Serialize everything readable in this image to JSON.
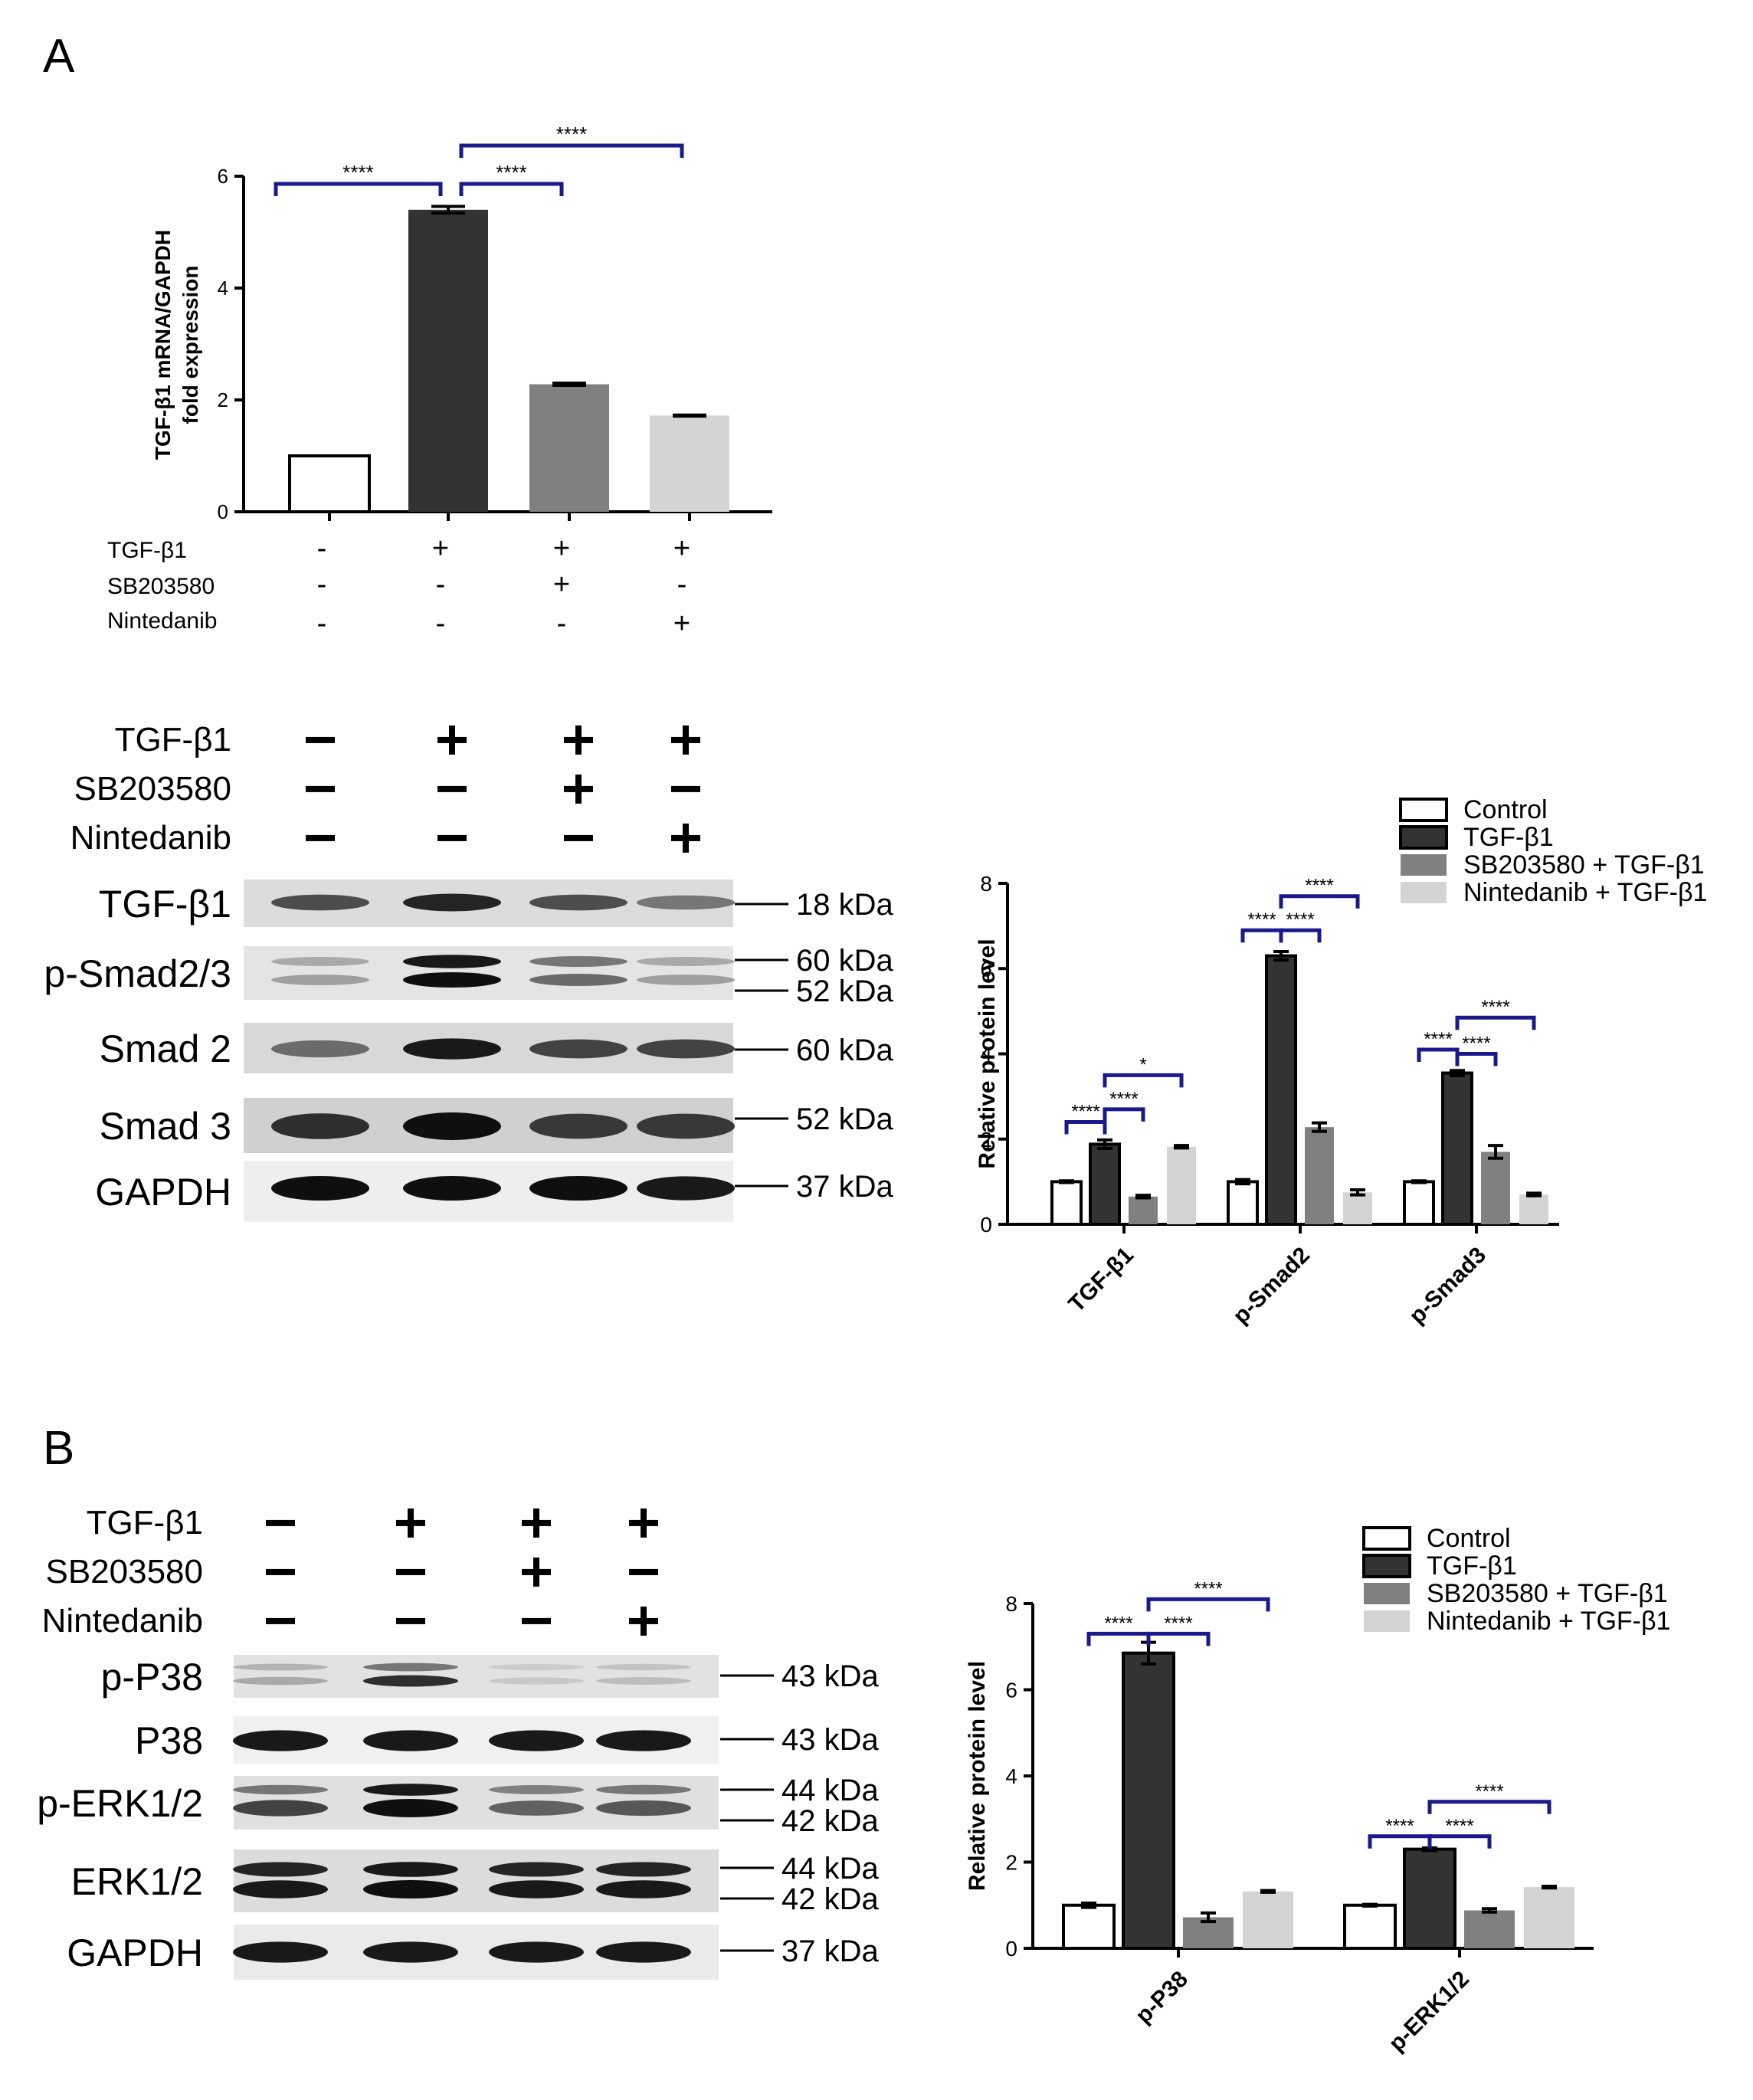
{
  "panels": {
    "a": "A",
    "b": "B"
  },
  "colors": {
    "control": "#ffffff",
    "tgf": "#333333",
    "sb": "#808080",
    "nin": "#d4d4d4",
    "bracket": "#1a1a8c"
  },
  "legend": [
    "Control",
    "TGF-β1",
    "SB203580 + TGF-β1",
    "Nintedanib + TGF-β1"
  ],
  "treatments": {
    "labels": [
      "TGF-β1",
      "SB203580",
      "Nintedanib"
    ],
    "signs": [
      [
        "-",
        "+",
        "+",
        "+"
      ],
      [
        "-",
        "-",
        "+",
        "-"
      ],
      [
        "-",
        "-",
        "-",
        "+"
      ]
    ]
  },
  "blots_a": [
    {
      "label": "TGF-β1",
      "kda": [
        "18 kDa"
      ]
    },
    {
      "label": "p-Smad2/3",
      "kda": [
        "60 kDa",
        "52 kDa"
      ]
    },
    {
      "label": "Smad 2",
      "kda": [
        "60 kDa"
      ]
    },
    {
      "label": "Smad 3",
      "kda": [
        "52 kDa"
      ]
    },
    {
      "label": "GAPDH",
      "kda": [
        "37 kDa"
      ]
    }
  ],
  "blots_b": [
    {
      "label": "p-P38",
      "kda": [
        "43 kDa"
      ]
    },
    {
      "label": "P38",
      "kda": [
        "43 kDa"
      ]
    },
    {
      "label": "p-ERK1/2",
      "kda": [
        "44 kDa",
        "42 kDa"
      ]
    },
    {
      "label": "ERK1/2",
      "kda": [
        "44 kDa",
        "42 kDa"
      ]
    },
    {
      "label": "GAPDH",
      "kda": [
        "37 kDa"
      ]
    }
  ],
  "chart_data": [
    {
      "id": "mrna",
      "type": "bar",
      "ylabel": [
        "TGF-β1 mRNA/GAPDH",
        "fold expression"
      ],
      "ylim": [
        0,
        6
      ],
      "yticks": [
        "0",
        "2",
        "4",
        "6"
      ],
      "values": [
        1.0,
        5.4,
        2.28,
        1.72
      ],
      "errors": [
        0,
        0.06,
        0.02,
        0.01
      ],
      "significance": [
        {
          "from": 0,
          "to": 1,
          "label": "****"
        },
        {
          "from": 1,
          "to": 2,
          "label": "****"
        },
        {
          "from": 1,
          "to": 3,
          "label": "****"
        }
      ]
    },
    {
      "id": "protein-a",
      "type": "bar",
      "ylabel": "Relative protein level",
      "ylim": [
        0,
        8
      ],
      "yticks": [
        "0",
        "2",
        "4",
        "6",
        "8"
      ],
      "categories": [
        "TGF-β1",
        "p-Smad2",
        "p-Smad3"
      ],
      "series": [
        {
          "name": "Control",
          "values": [
            1.0,
            1.0,
            1.0
          ],
          "errors": [
            0.02,
            0.05,
            0.02
          ]
        },
        {
          "name": "TGF-β1",
          "values": [
            1.88,
            6.3,
            3.55
          ],
          "errors": [
            0.1,
            0.1,
            0.06
          ]
        },
        {
          "name": "SB203580 + TGF-β1",
          "values": [
            0.65,
            2.28,
            1.7
          ],
          "errors": [
            0.03,
            0.1,
            0.15
          ]
        },
        {
          "name": "Nintedanib + TGF-β1",
          "values": [
            1.82,
            0.75,
            0.7
          ],
          "errors": [
            0.03,
            0.06,
            0.03
          ]
        }
      ],
      "significance": [
        {
          "cat": 0,
          "from": 0,
          "to": 1,
          "y": 2.4,
          "label": "****"
        },
        {
          "cat": 0,
          "from": 1,
          "to": 2,
          "y": 2.7,
          "label": "****"
        },
        {
          "cat": 0,
          "from": 1,
          "to": 3,
          "y": 3.5,
          "label": "*"
        },
        {
          "cat": 1,
          "from": 0,
          "to": 1,
          "y": 6.9,
          "label": "****"
        },
        {
          "cat": 1,
          "from": 1,
          "to": 2,
          "y": 6.9,
          "label": "****"
        },
        {
          "cat": 1,
          "from": 1,
          "to": 3,
          "y": 7.7,
          "label": "****"
        },
        {
          "cat": 2,
          "from": 0,
          "to": 1,
          "y": 4.1,
          "label": "****"
        },
        {
          "cat": 2,
          "from": 1,
          "to": 2,
          "y": 4.0,
          "label": "****"
        },
        {
          "cat": 2,
          "from": 1,
          "to": 3,
          "y": 4.85,
          "label": "****"
        }
      ]
    },
    {
      "id": "protein-b",
      "type": "bar",
      "ylabel": "Relative protein level",
      "ylim": [
        0,
        8
      ],
      "yticks": [
        "0",
        "2",
        "4",
        "6",
        "8"
      ],
      "categories": [
        "p-P38",
        "p-ERK1/2"
      ],
      "series": [
        {
          "name": "Control",
          "values": [
            1.0,
            1.0
          ],
          "errors": [
            0.05,
            0.02
          ]
        },
        {
          "name": "TGF-β1",
          "values": [
            6.85,
            2.3
          ],
          "errors": [
            0.25,
            0.03
          ]
        },
        {
          "name": "SB203580 + TGF-β1",
          "values": [
            0.72,
            0.88
          ],
          "errors": [
            0.1,
            0.04
          ]
        },
        {
          "name": "Nintedanib + TGF-β1",
          "values": [
            1.32,
            1.42
          ],
          "errors": [
            0.02,
            0.02
          ]
        }
      ],
      "significance": [
        {
          "cat": 0,
          "from": 0,
          "to": 1,
          "y": 7.3,
          "label": "****"
        },
        {
          "cat": 0,
          "from": 1,
          "to": 2,
          "y": 7.3,
          "label": "****"
        },
        {
          "cat": 0,
          "from": 1,
          "to": 3,
          "y": 8.1,
          "label": "****"
        },
        {
          "cat": 1,
          "from": 0,
          "to": 1,
          "y": 2.6,
          "label": "****"
        },
        {
          "cat": 1,
          "from": 1,
          "to": 2,
          "y": 2.6,
          "label": "****"
        },
        {
          "cat": 1,
          "from": 1,
          "to": 3,
          "y": 3.4,
          "label": "****"
        }
      ]
    }
  ]
}
